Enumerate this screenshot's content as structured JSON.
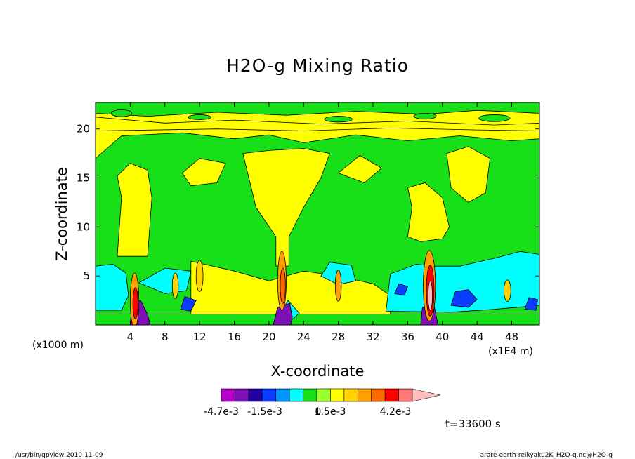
{
  "chart_data": {
    "type": "contour",
    "title": "H2O-g Mixing Ratio",
    "xlabel": "X-coordinate",
    "ylabel": "Z-coordinate",
    "x_unit_left": "(x1000 m)",
    "x_unit_right": "(x1E4 m)",
    "x_ticks": [
      "4",
      "8",
      "12",
      "16",
      "20",
      "24",
      "28",
      "32",
      "36",
      "40",
      "44",
      "48"
    ],
    "x_tick_values": [
      4,
      8,
      12,
      16,
      20,
      24,
      28,
      32,
      36,
      40,
      44,
      48
    ],
    "y_ticks": [
      "5",
      "10",
      "15",
      "20"
    ],
    "y_tick_values": [
      5,
      10,
      15,
      20
    ],
    "xlim": [
      0,
      51.2
    ],
    "ylim": [
      0,
      22.7
    ],
    "time_label": "t=33600 s",
    "colorbar": {
      "labels": [
        "-4.7e-3",
        "-1.5e-3",
        "0",
        "1.5e-3",
        "4.2e-3"
      ],
      "colors": [
        "#b400c8",
        "#7d10b4",
        "#1e00a0",
        "#0a3cff",
        "#0096ff",
        "#00ffff",
        "#18e018",
        "#9aff2a",
        "#ffff00",
        "#ffd200",
        "#ffa000",
        "#ff6a00",
        "#ff0000",
        "#ff7878",
        "#ffbebe"
      ]
    },
    "features": {
      "moist_columns_x": [
        4.5,
        21.5,
        38.5
      ],
      "blue_patches": [
        {
          "x": [
            0,
            4
          ],
          "z": [
            1,
            6
          ],
          "level": "#00ffff"
        },
        {
          "x": [
            34,
            51
          ],
          "z": [
            1.5,
            7
          ],
          "level": "#00ffff"
        },
        {
          "x": [
            41,
            44
          ],
          "z": [
            2,
            3.5
          ],
          "level": "#0a3cff"
        }
      ]
    }
  },
  "footer": {
    "left": "/usr/bin/gpview  2010-11-09",
    "right": "arare-earth-reikyaku2K_H2O-g.nc@H2O-g"
  },
  "colors": {
    "green": "#18e018",
    "yellow": "#ffff00",
    "cyan": "#00ffff",
    "blue": "#0a3cff"
  }
}
